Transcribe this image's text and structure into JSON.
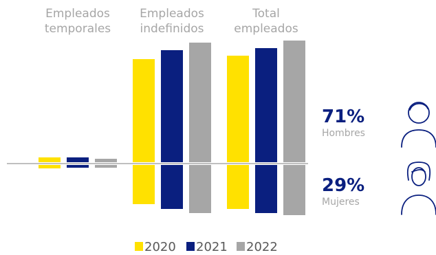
{
  "colors": {
    "c2020": "#ffe100",
    "c2021": "#0a1f7f",
    "c2022": "#a6a6a6",
    "axis": "#7f7f7f",
    "percent": "#0a1f7f",
    "label": "#a6a6a6",
    "icon": "#0a1f7f"
  },
  "chart_data": {
    "type": "bar",
    "categories": [
      [
        "Empleados",
        "temporales"
      ],
      [
        "Empleados",
        "indefinidos"
      ],
      [
        "Total",
        "empleados"
      ]
    ],
    "series": [
      {
        "name": "2020",
        "hombres": [
          7,
          150,
          155
        ],
        "mujeres": [
          5,
          57,
          64
        ]
      },
      {
        "name": "2021",
        "hombres": [
          7,
          163,
          166
        ],
        "mujeres": [
          4,
          64,
          70
        ]
      },
      {
        "name": "2022",
        "hombres": [
          5,
          174,
          177
        ],
        "mujeres": [
          4,
          70,
          73
        ]
      }
    ],
    "legend": [
      "2020",
      "2021",
      "2022"
    ],
    "legend_position": "bottom",
    "grid": false
  },
  "gender": {
    "men": {
      "pct": "71%",
      "label": "Hombres",
      "icon": "man-icon"
    },
    "women": {
      "pct": "29%",
      "label": "Mujeres",
      "icon": "woman-icon"
    }
  }
}
